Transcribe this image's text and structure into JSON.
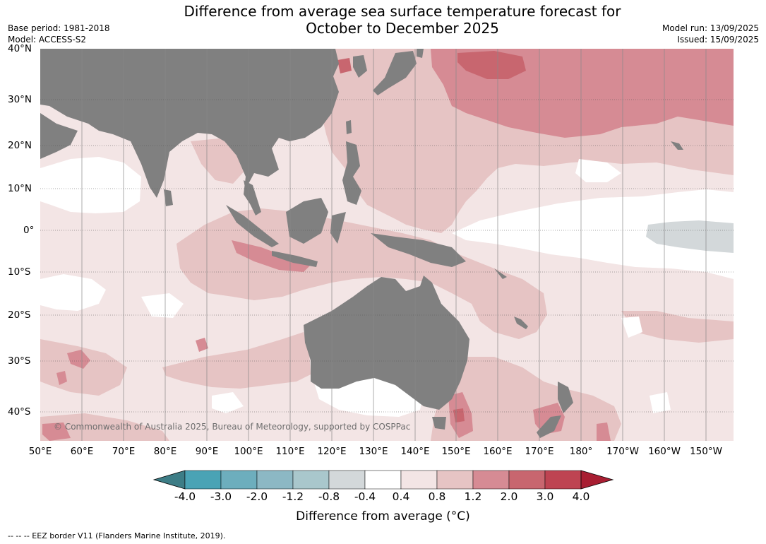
{
  "title_line1": "Difference from average sea surface temperature forecast for",
  "title_line2": "October to December 2025",
  "base_period": "Base period: 1981-2018",
  "model": "Model: ACCESS-S2",
  "model_run": "Model run: 13/09/2025",
  "issued": "Issued: 15/09/2025",
  "lat_labels": [
    "40°N",
    "30°N",
    "20°N",
    "10°N",
    "0°",
    "10°S",
    "20°S",
    "30°S",
    "40°S"
  ],
  "lon_labels": [
    "50°E",
    "60°E",
    "70°E",
    "80°E",
    "90°E",
    "100°E",
    "110°E",
    "120°E",
    "130°E",
    "140°E",
    "150°E",
    "160°E",
    "170°E",
    "180°",
    "170°W",
    "160°W",
    "150°W"
  ],
  "copyright": "© Commonwealth of Australia 2025, Bureau of Meteorology, supported by COSPPac",
  "colorbar": {
    "labels": [
      "-4.0",
      "-3.0",
      "-2.0",
      "-1.2",
      "-0.8",
      "-0.4",
      "0.4",
      "0.8",
      "1.2",
      "2.0",
      "3.0",
      "4.0"
    ],
    "colors": [
      "#3d7d86",
      "#4aa3b5",
      "#6daebd",
      "#8cb8c4",
      "#a9c7cc",
      "#d3d8da",
      "#ffffff",
      "#f3e5e5",
      "#e6c4c4",
      "#d68b94",
      "#c8666f",
      "#be4452",
      "#a81e32"
    ],
    "title": "Difference from average (°C)",
    "title_main": "Difference from average (",
    "title_unit": "°C)"
  },
  "legend_note": "--  --  -- EEZ border V11 (Flanders Marine Institute, 2019).",
  "palette": {
    "land": "#808080",
    "near_normal": "#ffffff",
    "anom_0_4_0_8": "#f3e5e5",
    "anom_0_8_1_2": "#e6c4c4",
    "anom_1_2_2_0": "#d68b94",
    "anom_2_0_3_0": "#c8666f",
    "anom_neg_0_8_neg_0_4": "#d3d8da"
  }
}
